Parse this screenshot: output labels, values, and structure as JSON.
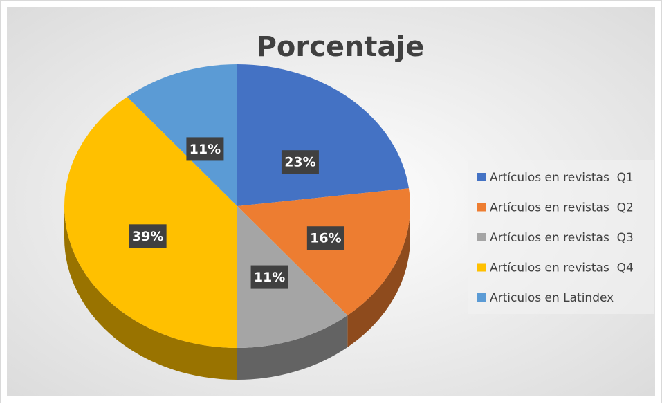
{
  "chart_data": {
    "type": "pie",
    "title": "Porcentaje",
    "categories": [
      "Artículos en revistas  Q1",
      "Artículos en revistas  Q2",
      "Artículos en revistas  Q3",
      "Artículos en revistas  Q4",
      "Articulos en Latindex"
    ],
    "values": [
      23,
      16,
      11,
      39,
      11
    ],
    "value_labels": [
      "23%",
      "16%",
      "11%",
      "39%",
      "11%"
    ],
    "colors": [
      "#4472c4",
      "#ed7d31",
      "#a5a5a5",
      "#ffc000",
      "#5b9bd5"
    ],
    "legend": "right"
  }
}
